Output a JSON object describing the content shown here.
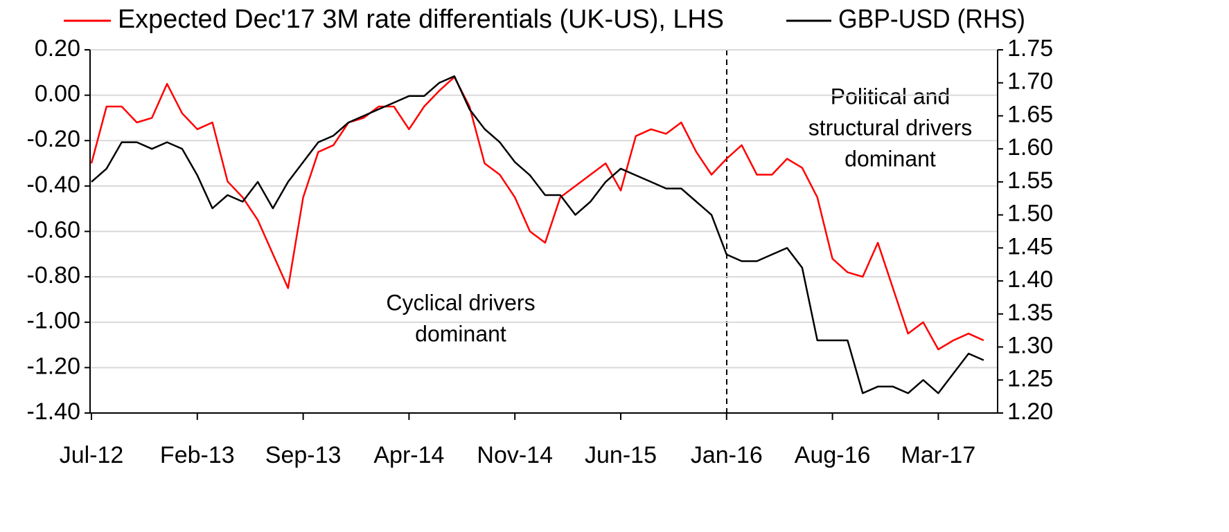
{
  "chart_data": {
    "type": "line",
    "categories": [
      "Jul-12",
      null,
      null,
      null,
      null,
      null,
      null,
      "Feb-13",
      null,
      null,
      null,
      null,
      null,
      null,
      "Sep-13",
      null,
      null,
      null,
      null,
      null,
      null,
      "Apr-14",
      null,
      null,
      null,
      null,
      null,
      null,
      "Nov-14",
      null,
      null,
      null,
      null,
      null,
      null,
      "Jun-15",
      null,
      null,
      null,
      null,
      null,
      null,
      "Jan-16",
      null,
      null,
      null,
      null,
      null,
      null,
      "Aug-16",
      null,
      null,
      null,
      null,
      null,
      null,
      "Mar-17",
      null,
      null,
      null
    ],
    "series": [
      {
        "name": "Expected Dec'17 3M rate differentials (UK-US), LHS",
        "color": "#ff0000",
        "axis": "y",
        "values": [
          -0.3,
          -0.05,
          -0.05,
          -0.12,
          -0.1,
          0.05,
          -0.08,
          -0.15,
          -0.12,
          -0.38,
          -0.45,
          -0.55,
          -0.7,
          -0.85,
          -0.45,
          -0.25,
          -0.22,
          -0.12,
          -0.1,
          -0.05,
          -0.05,
          -0.15,
          -0.05,
          0.02,
          0.08,
          -0.05,
          -0.3,
          -0.35,
          -0.45,
          -0.6,
          -0.65,
          -0.45,
          -0.4,
          -0.35,
          -0.3,
          -0.42,
          -0.18,
          -0.15,
          -0.17,
          -0.12,
          -0.25,
          -0.35,
          -0.28,
          -0.22,
          -0.35,
          -0.35,
          -0.28,
          -0.32,
          -0.45,
          -0.72,
          -0.78,
          -0.8,
          -0.65,
          -0.85,
          -1.05,
          -1.0,
          -1.12,
          -1.08,
          -1.05,
          -1.08
        ]
      },
      {
        "name": "GBP-USD (RHS)",
        "color": "#000000",
        "axis": "y2",
        "values": [
          1.55,
          1.57,
          1.61,
          1.61,
          1.6,
          1.61,
          1.6,
          1.56,
          1.51,
          1.53,
          1.52,
          1.55,
          1.51,
          1.55,
          1.58,
          1.61,
          1.62,
          1.64,
          1.65,
          1.66,
          1.67,
          1.68,
          1.68,
          1.7,
          1.71,
          1.66,
          1.63,
          1.61,
          1.58,
          1.56,
          1.53,
          1.53,
          1.5,
          1.52,
          1.55,
          1.57,
          1.56,
          1.55,
          1.54,
          1.54,
          1.52,
          1.5,
          1.44,
          1.43,
          1.43,
          1.44,
          1.45,
          1.42,
          1.31,
          1.31,
          1.31,
          1.23,
          1.24,
          1.24,
          1.23,
          1.25,
          1.23,
          1.26,
          1.29,
          1.28
        ]
      }
    ],
    "ylim": [
      -1.4,
      0.2
    ],
    "yticks": [
      {
        "value": 0.2,
        "label": "0.20"
      },
      {
        "value": 0,
        "label": "0.00"
      },
      {
        "value": -0.2,
        "label": "-0.20"
      },
      {
        "value": -0.4,
        "label": "-0.40"
      },
      {
        "value": -0.6,
        "label": "-0.60"
      },
      {
        "value": -0.8,
        "label": "-0.80"
      },
      {
        "value": -1,
        "label": "-1.00"
      },
      {
        "value": -1.2,
        "label": "-1.20"
      },
      {
        "value": -1.4,
        "label": "-1.40"
      }
    ],
    "y2lim": [
      1.2,
      1.75
    ],
    "y2ticks": [
      1.75,
      {
        "value": 1.7,
        "label": "1.70"
      },
      1.65,
      {
        "value": 1.6,
        "label": "1.60"
      },
      1.55,
      {
        "value": 1.5,
        "label": "1.50"
      },
      1.45,
      {
        "value": 1.4,
        "label": "1.40"
      },
      1.35,
      {
        "value": 1.3,
        "label": "1.30"
      },
      1.25,
      {
        "value": 1.2,
        "label": "1.20"
      }
    ],
    "grid": true,
    "legend": "top",
    "annotations": [
      [
        "Cyclical drivers",
        "dominant"
      ],
      [
        "Political and",
        "structural drivers",
        "dominant"
      ]
    ]
  }
}
